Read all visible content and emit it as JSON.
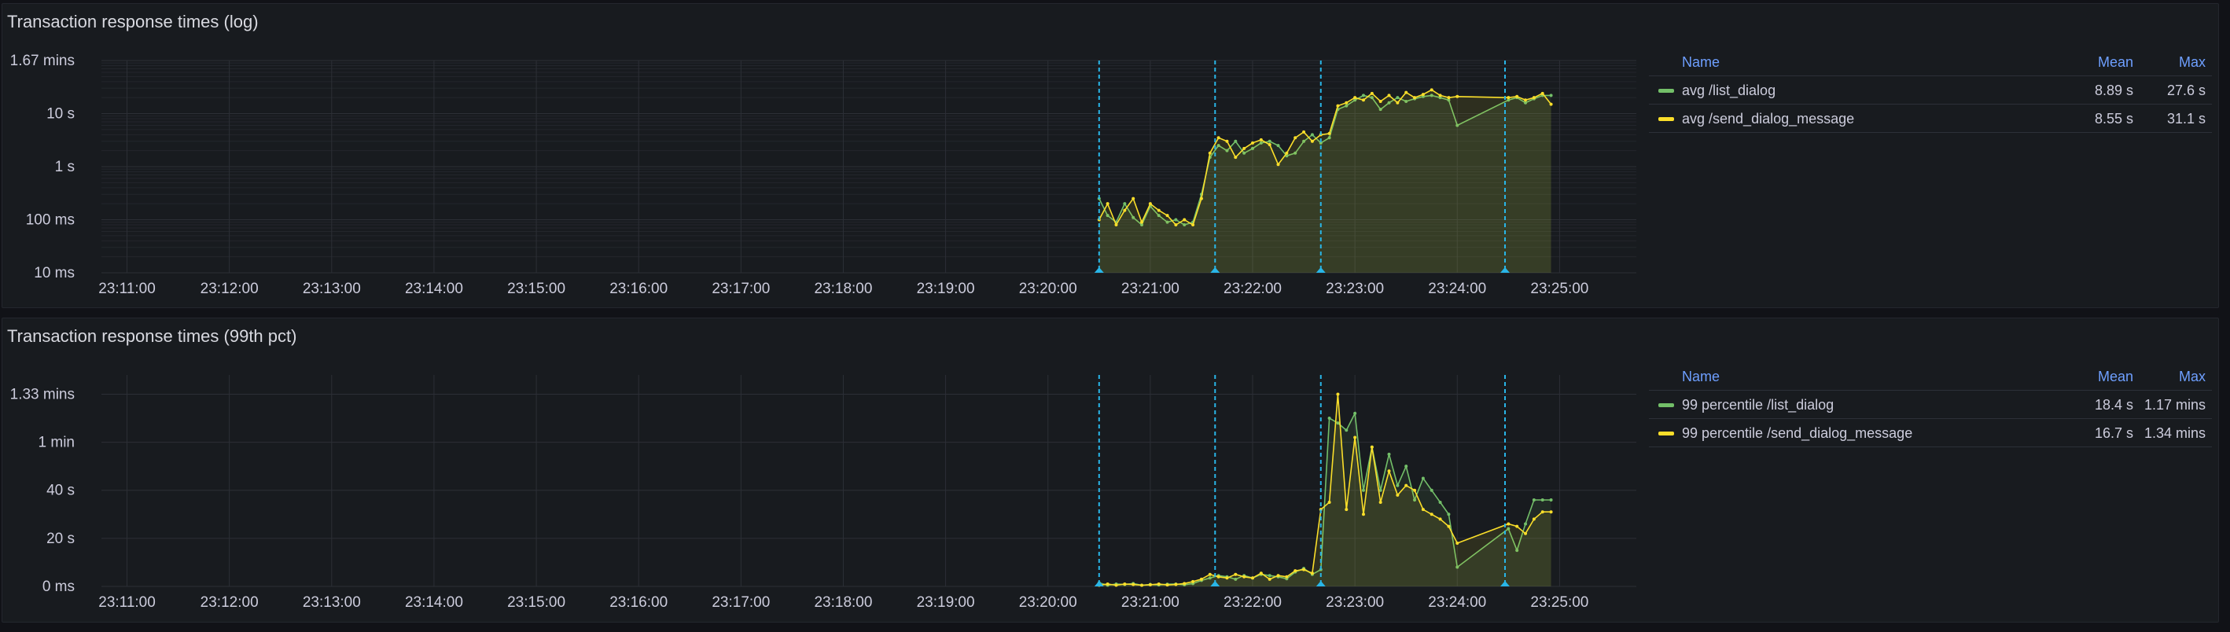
{
  "colors": {
    "list_dialog": "#73bf69",
    "send_dialog_message": "#fade2a",
    "annotation": "#29b6e8",
    "header": "#6e9fff"
  },
  "x_ticks": [
    "23:11:00",
    "23:12:00",
    "23:13:00",
    "23:14:00",
    "23:15:00",
    "23:16:00",
    "23:17:00",
    "23:18:00",
    "23:19:00",
    "23:20:00",
    "23:21:00",
    "23:22:00",
    "23:23:00",
    "23:24:00",
    "23:25:00"
  ],
  "annotations": [
    "23:20:30",
    "23:21:38",
    "23:22:40",
    "23:24:28"
  ],
  "panels": [
    {
      "title": "Transaction response times (log)",
      "legend": {
        "name_header": "Name",
        "mean_header": "Mean",
        "max_header": "Max",
        "rows": [
          {
            "name": "avg /list_dialog",
            "mean": "8.89 s",
            "max": "27.6 s"
          },
          {
            "name": "avg /send_dialog_message",
            "mean": "8.55 s",
            "max": "31.1 s"
          }
        ]
      }
    },
    {
      "title": "Transaction response times (99th pct)",
      "legend": {
        "name_header": "Name",
        "mean_header": "Mean",
        "max_header": "Max",
        "rows": [
          {
            "name": "99 percentile /list_dialog",
            "mean": "18.4 s",
            "max": "1.17 mins"
          },
          {
            "name": "99 percentile /send_dialog_message",
            "mean": "16.7 s",
            "max": "1.34 mins"
          }
        ]
      }
    }
  ],
  "chart_data": [
    {
      "type": "line",
      "title": "Transaction response times (log)",
      "scale": "log",
      "yticks": [
        "1.67 mins",
        "10 s",
        "1 s",
        "100 ms",
        "10 ms"
      ],
      "ylim_seconds": [
        0.01,
        100
      ],
      "x_range": [
        "23:10:45",
        "23:25:45"
      ],
      "series": [
        {
          "name": "avg /list_dialog",
          "x": [
            "23:20:30",
            "23:20:35",
            "23:20:40",
            "23:20:45",
            "23:20:50",
            "23:20:55",
            "23:21:00",
            "23:21:05",
            "23:21:10",
            "23:21:15",
            "23:21:20",
            "23:21:25",
            "23:21:30",
            "23:21:35",
            "23:21:40",
            "23:21:45",
            "23:21:50",
            "23:21:55",
            "23:22:00",
            "23:22:05",
            "23:22:10",
            "23:22:15",
            "23:22:20",
            "23:22:25",
            "23:22:30",
            "23:22:35",
            "23:22:40",
            "23:22:45",
            "23:22:50",
            "23:22:55",
            "23:23:00",
            "23:23:05",
            "23:23:10",
            "23:23:15",
            "23:23:20",
            "23:23:25",
            "23:23:30",
            "23:23:35",
            "23:23:40",
            "23:23:45",
            "23:23:50",
            "23:23:55",
            "23:24:00",
            "23:24:30",
            "23:24:35",
            "23:24:40",
            "23:24:45",
            "23:24:50",
            "23:24:55"
          ],
          "y_seconds": [
            0.25,
            0.12,
            0.09,
            0.2,
            0.11,
            0.08,
            0.18,
            0.12,
            0.09,
            0.1,
            0.08,
            0.09,
            0.3,
            1.5,
            2.5,
            2.0,
            3.0,
            1.8,
            2.2,
            2.8,
            3.0,
            2.5,
            1.6,
            1.8,
            3.0,
            4.0,
            2.8,
            3.5,
            12,
            14,
            18,
            22,
            20,
            12,
            16,
            20,
            17,
            19,
            21,
            22,
            20,
            18,
            6,
            18,
            20,
            16,
            19,
            22,
            22
          ]
        },
        {
          "name": "avg /send_dialog_message",
          "x": [
            "23:20:30",
            "23:20:35",
            "23:20:40",
            "23:20:45",
            "23:20:50",
            "23:20:55",
            "23:21:00",
            "23:21:05",
            "23:21:10",
            "23:21:15",
            "23:21:20",
            "23:21:25",
            "23:21:30",
            "23:21:35",
            "23:21:40",
            "23:21:45",
            "23:21:50",
            "23:21:55",
            "23:22:00",
            "23:22:05",
            "23:22:10",
            "23:22:15",
            "23:22:20",
            "23:22:25",
            "23:22:30",
            "23:22:35",
            "23:22:40",
            "23:22:45",
            "23:22:50",
            "23:22:55",
            "23:23:00",
            "23:23:05",
            "23:23:10",
            "23:23:15",
            "23:23:20",
            "23:23:25",
            "23:23:30",
            "23:23:35",
            "23:23:40",
            "23:23:45",
            "23:23:50",
            "23:23:55",
            "23:24:00",
            "23:24:30",
            "23:24:35",
            "23:24:40",
            "23:24:45",
            "23:24:50",
            "23:24:55"
          ],
          "y_seconds": [
            0.1,
            0.2,
            0.08,
            0.15,
            0.25,
            0.09,
            0.2,
            0.15,
            0.12,
            0.08,
            0.1,
            0.08,
            0.25,
            1.8,
            3.5,
            3.0,
            1.5,
            2.2,
            2.8,
            3.2,
            2.6,
            1.1,
            1.8,
            3.5,
            4.5,
            3.0,
            4.0,
            4.2,
            14,
            16,
            20,
            18,
            24,
            17,
            22,
            16,
            25,
            20,
            23,
            28,
            22,
            20,
            21,
            20,
            21,
            18,
            20,
            24,
            15
          ]
        }
      ]
    },
    {
      "type": "line",
      "title": "Transaction response times (99th pct)",
      "scale": "linear",
      "yticks": [
        "1.33 mins",
        "1 min",
        "40 s",
        "20 s",
        "0 ms"
      ],
      "ylim_seconds": [
        0,
        88
      ],
      "x_range": [
        "23:10:45",
        "23:25:45"
      ],
      "series": [
        {
          "name": "99 percentile /list_dialog",
          "x": [
            "23:20:30",
            "23:20:35",
            "23:20:40",
            "23:20:45",
            "23:20:50",
            "23:20:55",
            "23:21:00",
            "23:21:05",
            "23:21:10",
            "23:21:15",
            "23:21:20",
            "23:21:25",
            "23:21:30",
            "23:21:35",
            "23:21:40",
            "23:21:45",
            "23:21:50",
            "23:21:55",
            "23:22:00",
            "23:22:05",
            "23:22:10",
            "23:22:15",
            "23:22:20",
            "23:22:25",
            "23:22:30",
            "23:22:35",
            "23:22:40",
            "23:22:45",
            "23:22:50",
            "23:22:55",
            "23:23:00",
            "23:23:05",
            "23:23:10",
            "23:23:15",
            "23:23:20",
            "23:23:25",
            "23:23:30",
            "23:23:35",
            "23:23:40",
            "23:23:45",
            "23:23:50",
            "23:23:55",
            "23:24:00",
            "23:24:30",
            "23:24:35",
            "23:24:40",
            "23:24:45",
            "23:24:50",
            "23:24:55"
          ],
          "y_seconds": [
            1.5,
            0.5,
            1,
            0.8,
            1.2,
            0.5,
            0.8,
            0.6,
            0.9,
            1,
            0.7,
            1.2,
            2.5,
            3.5,
            4.5,
            4,
            3,
            4.5,
            3.5,
            5,
            4.5,
            4,
            3.2,
            6,
            7.5,
            5,
            7,
            70,
            68,
            65,
            72,
            40,
            58,
            40,
            55,
            42,
            50,
            36,
            45,
            40,
            35,
            30,
            8,
            24,
            15,
            26,
            36,
            36,
            36
          ]
        },
        {
          "name": "99 percentile /send_dialog_message",
          "x": [
            "23:20:30",
            "23:20:35",
            "23:20:40",
            "23:20:45",
            "23:20:50",
            "23:20:55",
            "23:21:00",
            "23:21:05",
            "23:21:10",
            "23:21:15",
            "23:21:20",
            "23:21:25",
            "23:21:30",
            "23:21:35",
            "23:21:40",
            "23:21:45",
            "23:21:50",
            "23:21:55",
            "23:22:00",
            "23:22:05",
            "23:22:10",
            "23:22:15",
            "23:22:20",
            "23:22:25",
            "23:22:30",
            "23:22:35",
            "23:22:40",
            "23:22:45",
            "23:22:50",
            "23:22:55",
            "23:23:00",
            "23:23:05",
            "23:23:10",
            "23:23:15",
            "23:23:20",
            "23:23:25",
            "23:23:30",
            "23:23:35",
            "23:23:40",
            "23:23:45",
            "23:23:50",
            "23:23:55",
            "23:24:00",
            "23:24:30",
            "23:24:35",
            "23:24:40",
            "23:24:45",
            "23:24:50",
            "23:24:55"
          ],
          "y_seconds": [
            0.5,
            1,
            0.5,
            1,
            0.8,
            0.5,
            0.7,
            1,
            0.6,
            0.8,
            1.2,
            2,
            3,
            5,
            4,
            3.5,
            5,
            4,
            3.5,
            5.5,
            3,
            4.5,
            4,
            6.5,
            7,
            5.5,
            32,
            35,
            80,
            32,
            62,
            30,
            58,
            35,
            48,
            38,
            42,
            40,
            32,
            30,
            28,
            25,
            18,
            26,
            25,
            22,
            28,
            31,
            31
          ]
        }
      ]
    }
  ]
}
